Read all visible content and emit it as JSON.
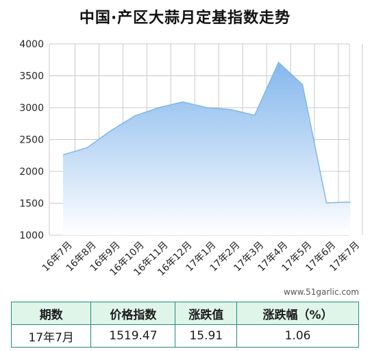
{
  "title": "中国·产区大蒜月定基指数走势",
  "watermark": "www.51garlic.com",
  "colors": {
    "line": "#7eb6ea",
    "fill_top": "#7fb4ec",
    "fill_bottom": "#ffffff",
    "grid": "#c8c8c8",
    "table_border": "#1e8a7a",
    "table_header_bg": "#dff5ea"
  },
  "chart_data": {
    "type": "area",
    "title": "中国·产区大蒜月定基指数走势",
    "categories": [
      "16年7月",
      "16年8月",
      "16年9月",
      "16年10月",
      "16年11月",
      "16年12月",
      "17年1月",
      "17年2月",
      "17年3月",
      "17年4月",
      "17年5月",
      "17年6月",
      "17年7月"
    ],
    "values": [
      2260,
      2370,
      2640,
      2870,
      3000,
      3090,
      3000,
      2970,
      2880,
      3710,
      3360,
      1505,
      1519.47
    ],
    "yticks": [
      1000,
      1500,
      2000,
      2500,
      3000,
      3500,
      4000
    ],
    "ylim": [
      1000,
      4000
    ],
    "xlabel": "",
    "ylabel": "",
    "grid": true,
    "legend": "none"
  },
  "table": {
    "headers": [
      "期数",
      "价格指数",
      "涨跌值",
      "涨跌幅（%）"
    ],
    "rows": [
      [
        "17年7月",
        "1519.47",
        "15.91",
        "1.06"
      ]
    ]
  }
}
